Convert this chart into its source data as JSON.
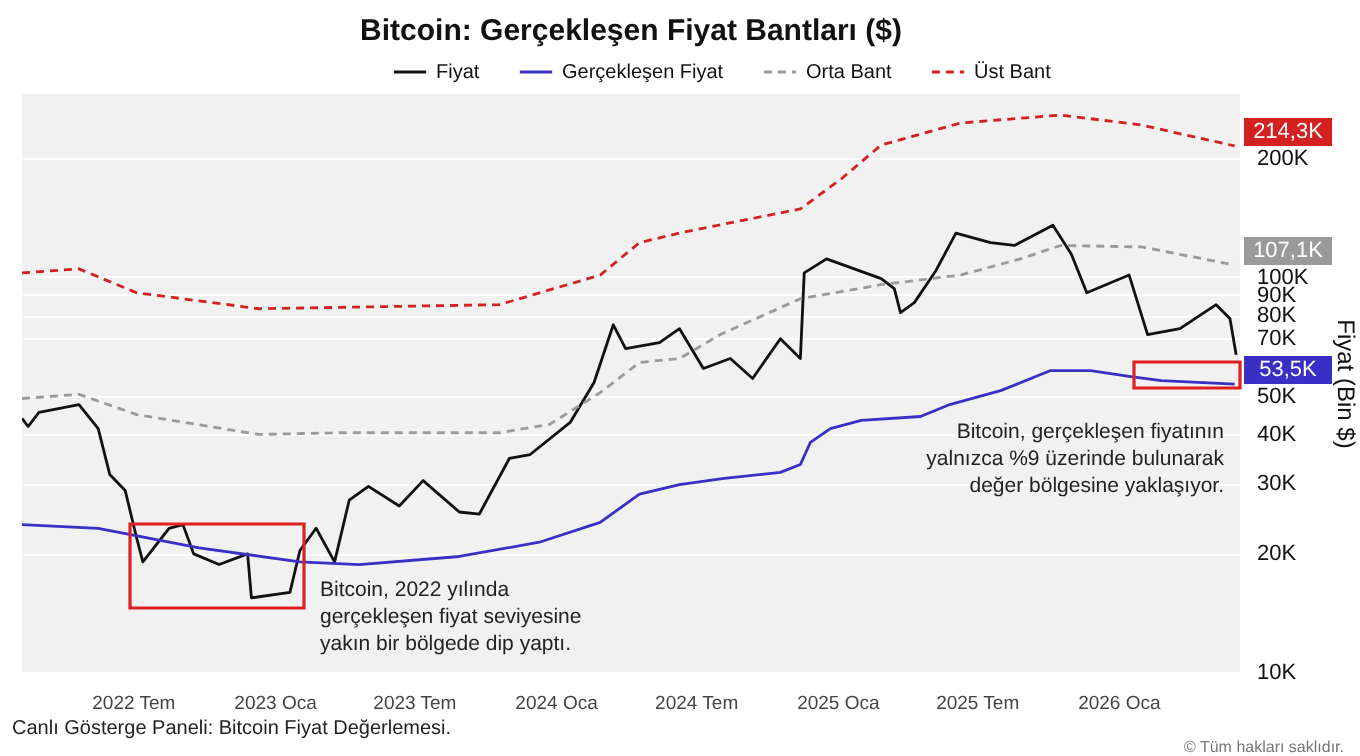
{
  "chart_data": {
    "type": "line",
    "title": "Bitcoin: Gerçekleşen Fiyat Bantları ($)",
    "ylabel": "Fiyat (Bin $)",
    "log": "y",
    "grid": "y",
    "legend": "top",
    "xlim": [
      "2022-02-07",
      "2026-06-08"
    ],
    "xticks": [
      {
        "value": "2022-07-01",
        "label": "2022 Tem"
      },
      {
        "value": "2023-01-01",
        "label": "2023 Oca"
      },
      {
        "value": "2023-07-01",
        "label": "2023 Tem"
      },
      {
        "value": "2024-01-01",
        "label": "2024 Oca"
      },
      {
        "value": "2024-07-01",
        "label": "2024 Tem"
      },
      {
        "value": "2025-01-01",
        "label": "2025 Oca"
      },
      {
        "value": "2025-07-01",
        "label": "2025 Tem"
      },
      {
        "value": "2026-01-01",
        "label": "2026 Oca"
      }
    ],
    "ylim": [
      10000,
      290000
    ],
    "yticks": [
      {
        "value": 10000,
        "label": "10K"
      },
      {
        "value": 20000,
        "label": "20K"
      },
      {
        "value": 30000,
        "label": "30K"
      },
      {
        "value": 40000,
        "label": "40K"
      },
      {
        "value": 50000,
        "label": "50K"
      },
      {
        "value": 70000,
        "label": "70K"
      },
      {
        "value": 80000,
        "label": "80K"
      },
      {
        "value": 90000,
        "label": "90K"
      },
      {
        "value": 100000,
        "label": "100K"
      },
      {
        "value": 200000,
        "label": "200K"
      }
    ],
    "series": [
      {
        "name": "Fiyat",
        "color": "#111111",
        "line_style": "solid",
        "x": [
          "2022-02-07",
          "2022-02-15",
          "2022-03-01",
          "2022-04-22",
          "2022-05-17",
          "2022-06-01",
          "2022-06-21",
          "2022-07-06",
          "2022-07-14",
          "2022-08-17",
          "2022-09-04",
          "2022-09-18",
          "2022-10-21",
          "2022-11-27",
          "2022-12-02",
          "2023-01-21",
          "2023-02-03",
          "2023-02-24",
          "2023-03-20",
          "2023-04-08",
          "2023-05-03",
          "2023-06-12",
          "2023-07-13",
          "2023-08-29",
          "2023-09-24",
          "2023-11-02",
          "2023-11-29",
          "2024-01-20",
          "2024-02-20",
          "2024-03-16",
          "2024-04-01",
          "2024-05-15",
          "2024-06-10",
          "2024-07-11",
          "2024-08-15",
          "2024-09-13",
          "2024-10-19",
          "2024-11-14",
          "2024-11-19",
          "2024-12-18",
          "2025-02-27",
          "2025-03-16",
          "2025-03-24",
          "2025-04-11",
          "2025-05-09",
          "2025-06-04",
          "2025-07-19",
          "2025-08-19",
          "2025-10-08",
          "2025-11-01",
          "2025-11-21",
          "2026-01-15",
          "2026-02-08",
          "2026-03-22",
          "2026-05-08",
          "2026-05-26",
          "2026-06-03"
        ],
        "values": [
          43800,
          41800,
          45400,
          47500,
          41300,
          31600,
          28800,
          21800,
          19000,
          23100,
          23600,
          19900,
          18700,
          19900,
          15400,
          15900,
          20300,
          23100,
          19000,
          27200,
          29500,
          26300,
          30500,
          25400,
          25100,
          34700,
          35500,
          42800,
          54000,
          75600,
          65800,
          68100,
          73900,
          58600,
          62100,
          55300,
          69700,
          62100,
          102300,
          111000,
          98900,
          93300,
          81100,
          86000,
          103600,
          129000,
          122000,
          120000,
          135000,
          114000,
          91100,
          101000,
          71400,
          73900,
          85000,
          78300,
          63500
        ]
      },
      {
        "name": "Gerçekleşen Fiyat",
        "color": "#3a2fc4",
        "line_style": "solid",
        "x": [
          "2022-02-07",
          "2022-05-17",
          "2022-09-25",
          "2023-02-03",
          "2023-04-21",
          "2023-08-29",
          "2023-12-11",
          "2024-02-28",
          "2024-04-19",
          "2024-06-10",
          "2024-08-07",
          "2024-10-19",
          "2024-11-14",
          "2024-11-27",
          "2024-12-23",
          "2025-02-01",
          "2025-04-19",
          "2025-05-27",
          "2025-08-01",
          "2025-10-05",
          "2025-11-26",
          "2026-01-17",
          "2026-02-26",
          "2026-06-01"
        ],
        "values": [
          23600,
          23100,
          20600,
          19000,
          18700,
          19600,
          21300,
          23900,
          28200,
          29800,
          30900,
          32000,
          33500,
          38100,
          41300,
          43300,
          44300,
          47500,
          51500,
          57900,
          57900,
          55900,
          54600,
          53500
        ],
        "value_labels": [
          null,
          null,
          null,
          null,
          null,
          null,
          null,
          null,
          null,
          null,
          null,
          null,
          null,
          null,
          null,
          null,
          null,
          null,
          null,
          null,
          null,
          null,
          null,
          "53,5K"
        ]
      },
      {
        "name": "Orta Bant",
        "color": "#9a9a9a",
        "line_style": "dashed",
        "x": [
          "2022-02-07",
          "2022-04-22",
          "2022-07-06",
          "2022-12-12",
          "2023-03-25",
          "2023-10-20",
          "2023-12-24",
          "2024-02-28",
          "2024-04-19",
          "2024-06-10",
          "2024-08-02",
          "2024-11-14",
          "2025-02-27",
          "2025-06-10",
          "2025-08-27",
          "2025-10-18",
          "2026-01-31",
          "2026-06-01"
        ],
        "values": [
          49200,
          50400,
          44800,
          39900,
          40300,
          40300,
          42300,
          50900,
          60700,
          62100,
          71400,
          88000,
          95500,
          101000,
          111000,
          120000,
          119000,
          107100
        ],
        "value_labels": [
          null,
          null,
          null,
          null,
          null,
          null,
          null,
          null,
          null,
          null,
          null,
          null,
          null,
          null,
          null,
          null,
          null,
          "107,1K"
        ]
      },
      {
        "name": "Üst Bant",
        "color": "#d32020",
        "line_style": "dashed",
        "x": [
          "2022-02-07",
          "2022-04-22",
          "2022-07-06",
          "2022-12-12",
          "2023-10-20",
          "2024-02-28",
          "2024-04-19",
          "2024-06-10",
          "2024-11-14",
          "2025-01-06",
          "2025-02-27",
          "2025-06-10",
          "2025-10-18",
          "2026-01-31",
          "2026-06-01"
        ],
        "values": [
          102300,
          104700,
          91100,
          83000,
          85000,
          101000,
          122000,
          129000,
          148500,
          176800,
          215400,
          244900,
          256600,
          242000,
          214300
        ],
        "value_labels": [
          null,
          null,
          null,
          null,
          null,
          null,
          null,
          null,
          null,
          null,
          null,
          null,
          null,
          null,
          "214,3K"
        ]
      }
    ],
    "annotations": [
      "Bitcoin, 2022 yılında gerçekleşen fiyat seviyesine yakın bir bölgede dip yaptı.",
      "Bitcoin, gerçekleşen fiyatının yalnızca %9 üzerinde bulunarak değer bölgesine yaklaşıyor.",
      "Canlı Gösterge Paneli: Bitcoin Fiyat Değerlemesi.",
      "© Tüm hakları saklıdır."
    ]
  }
}
